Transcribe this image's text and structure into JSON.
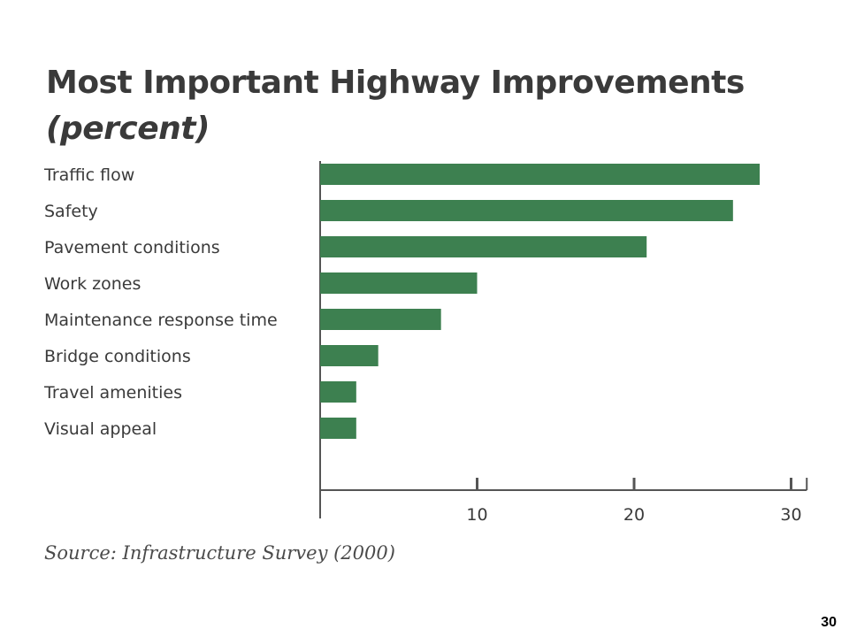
{
  "title": "Most Important Highway Improvements",
  "subtitle": "(percent)",
  "source": "Source: Infrastructure Survey (2000)",
  "page_number": "30",
  "colors": {
    "bar": "#3d8050",
    "axis": "#555555",
    "text": "#3a3a3a"
  },
  "chart_data": {
    "type": "bar",
    "orientation": "horizontal",
    "title": "Most Important Highway Improvements",
    "subtitle": "(percent)",
    "categories": [
      "Traffic flow",
      "Safety",
      "Pavement conditions",
      "Work zones",
      "Maintenance response time",
      "Bridge conditions",
      "Travel amenities",
      "Visual appeal"
    ],
    "values": [
      28,
      26.3,
      20.8,
      10,
      7.7,
      3.7,
      2.3,
      2.3
    ],
    "xticks": [
      "10",
      "20",
      "30"
    ],
    "xlim": [
      0,
      31
    ],
    "grid": false
  }
}
